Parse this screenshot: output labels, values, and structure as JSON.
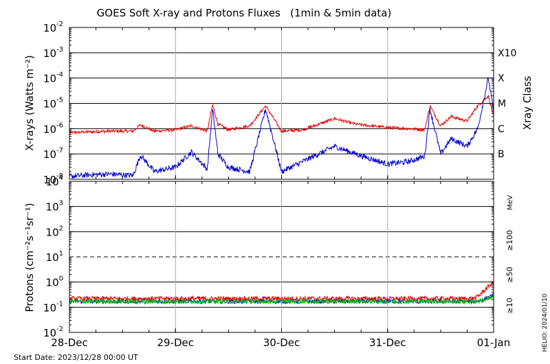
{
  "chart_data": [
    {
      "type": "line",
      "title": "GOES Soft X-ray and Protons Fluxes   (1min & 5min data)",
      "ylabel": "X-rays (Watts m⁻²)",
      "y2label": "Xray Class",
      "yscale": "log",
      "ylim": [
        1e-08,
        0.01
      ],
      "ytick_labels": [
        {
          "base": "10",
          "exp": "-8",
          "value": 1e-08
        },
        {
          "base": "10",
          "exp": "-7",
          "value": 1e-07
        },
        {
          "base": "10",
          "exp": "-6",
          "value": 1e-06
        },
        {
          "base": "10",
          "exp": "-5",
          "value": 1e-05
        },
        {
          "base": "10",
          "exp": "-4",
          "value": 0.0001
        },
        {
          "base": "10",
          "exp": "-3",
          "value": 0.001
        },
        {
          "base": "10",
          "exp": "-2",
          "value": 0.01
        }
      ],
      "class_labels": [
        {
          "label": "B",
          "value": 1e-07
        },
        {
          "label": "C",
          "value": 1e-06
        },
        {
          "label": "M",
          "value": 1e-05
        },
        {
          "label": "X",
          "value": 0.0001
        },
        {
          "label": "X10",
          "value": 0.001
        }
      ],
      "grid": true,
      "series": [
        {
          "color": "#dd0000",
          "x": [
            0,
            0.2,
            0.4,
            0.6,
            0.67,
            0.8,
            1.0,
            1.15,
            1.3,
            1.35,
            1.4,
            1.5,
            1.7,
            1.85,
            2.0,
            2.2,
            2.5,
            2.7,
            3.0,
            3.2,
            3.35,
            3.4,
            3.5,
            3.6,
            3.75,
            3.85,
            3.95,
            4.0
          ],
          "y": [
            7e-07,
            7.5e-07,
            8e-07,
            8e-07,
            1.4e-06,
            8e-07,
            9e-07,
            1.3e-06,
            8e-07,
            9e-06,
            1.5e-06,
            9e-07,
            1.3e-06,
            8e-06,
            8e-07,
            9e-07,
            2.5e-06,
            1.5e-06,
            1.1e-06,
            1e-06,
            9e-07,
            8e-06,
            1.3e-06,
            3e-06,
            2e-06,
            8e-06,
            2e-05,
            3e-06
          ]
        },
        {
          "color": "#0000cc",
          "x": [
            0,
            0.2,
            0.4,
            0.6,
            0.67,
            0.8,
            1.0,
            1.15,
            1.3,
            1.35,
            1.4,
            1.5,
            1.7,
            1.85,
            2.0,
            2.2,
            2.5,
            2.7,
            3.0,
            3.2,
            3.35,
            3.4,
            3.5,
            3.6,
            3.75,
            3.85,
            3.95,
            4.0
          ],
          "y": [
            1.3e-08,
            1.5e-08,
            1.6e-08,
            1.4e-08,
            9e-08,
            2e-08,
            3e-08,
            1.2e-07,
            2.5e-08,
            6e-06,
            1e-07,
            3e-08,
            2e-08,
            6e-06,
            2e-08,
            5e-08,
            2e-07,
            1e-07,
            4e-08,
            5e-08,
            8e-08,
            6e-06,
            1e-07,
            4e-07,
            2e-07,
            1e-06,
            0.0001,
            5e-06
          ]
        }
      ]
    },
    {
      "type": "line",
      "ylabel": "Protons (cm⁻²s⁻¹sr⁻¹)",
      "yscale": "log",
      "ylim": [
        0.01,
        10000
      ],
      "ytick_labels": [
        {
          "base": "10",
          "exp": "-2",
          "value": 0.01
        },
        {
          "base": "10",
          "exp": "-1",
          "value": 0.1
        },
        {
          "base": "10",
          "exp": "0",
          "value": 1
        },
        {
          "base": "10",
          "exp": "1",
          "value": 10
        },
        {
          "base": "10",
          "exp": "2",
          "value": 100
        },
        {
          "base": "10",
          "exp": "3",
          "value": 1000
        },
        {
          "base": "10",
          "exp": "4",
          "value": 10000
        }
      ],
      "threshold_line": 10,
      "grid": true,
      "energy_unit": "MeV",
      "legend": [
        {
          "label": "≥10",
          "color": "#dd0000"
        },
        {
          "label": "≥50",
          "color": "#0000cc"
        },
        {
          "label": "≥100",
          "color": "#00cc00"
        }
      ],
      "series": [
        {
          "name": "≥10",
          "color": "#dd0000",
          "level": 0.22,
          "end_level": 1.0
        },
        {
          "name": "≥50",
          "color": "#0000cc",
          "level": 0.17,
          "end_level": 0.3
        },
        {
          "name": "≥100",
          "color": "#00cc00",
          "level": 0.17,
          "end_level": 0.25
        }
      ],
      "categories": [
        "28-Dec",
        "29-Dec",
        "30-Dec",
        "31-Dec",
        "01-Jan"
      ],
      "xlim": [
        0,
        4
      ]
    }
  ],
  "start_date": "Start Date: 2023/12/28 00:00 UT",
  "credit": "HELIO: 2024/01/10"
}
